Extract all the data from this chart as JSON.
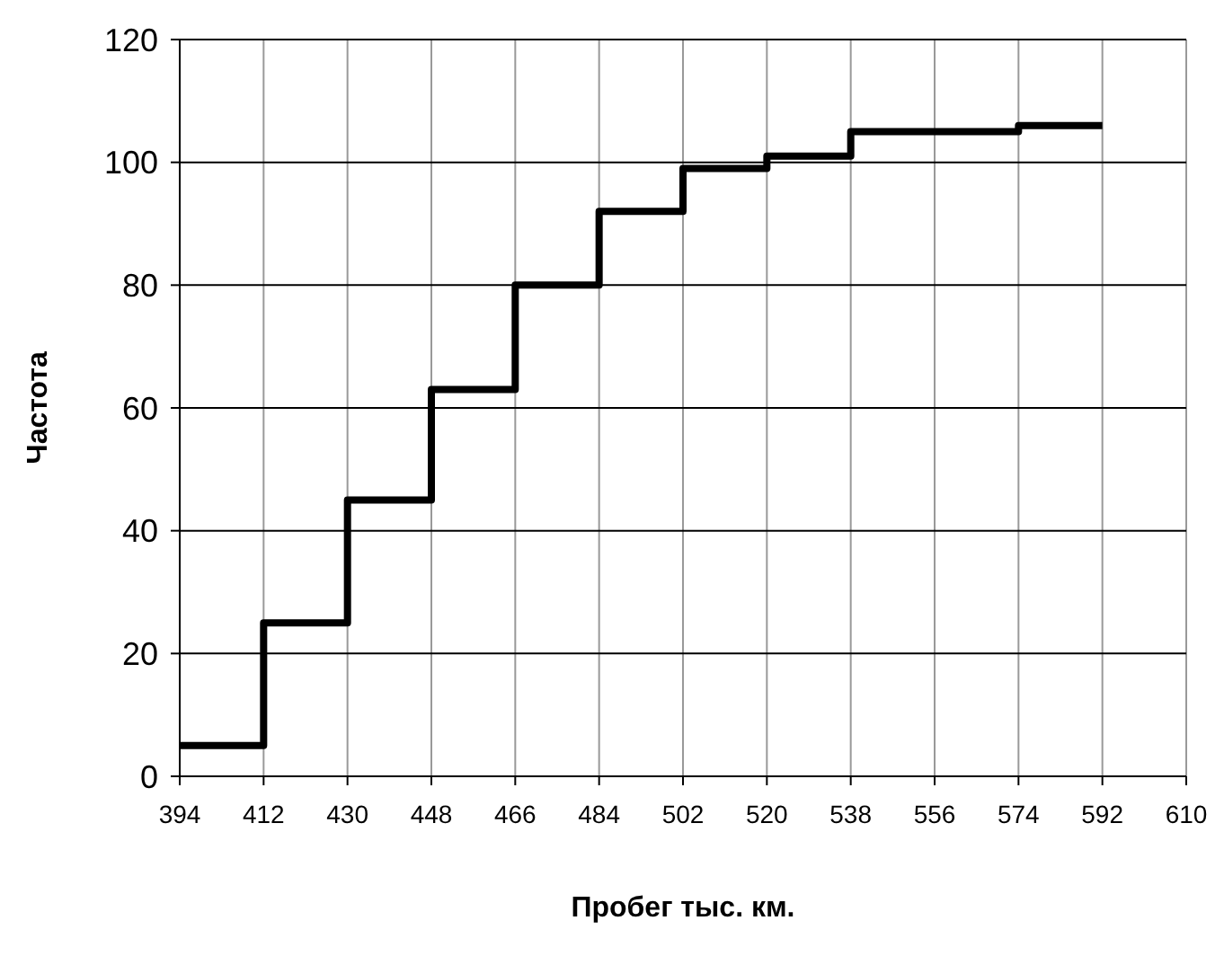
{
  "chart_data": {
    "type": "step",
    "xlabel": "Пробег тыс. км.",
    "ylabel": "Частота",
    "x": [
      394,
      412,
      430,
      448,
      466,
      484,
      502,
      520,
      538,
      556,
      574,
      592
    ],
    "values": [
      5,
      25,
      45,
      63,
      80,
      92,
      99,
      101,
      105,
      105,
      106,
      106
    ],
    "color": "#000000",
    "xlim": [
      394,
      610
    ],
    "xticks": [
      394,
      412,
      430,
      448,
      466,
      484,
      502,
      520,
      538,
      556,
      574,
      592,
      610
    ],
    "ylim": [
      0,
      120
    ],
    "yticks": [
      0,
      20,
      40,
      60,
      80,
      100,
      120
    ],
    "grid": true,
    "marker": "none",
    "line_style": "solid"
  }
}
